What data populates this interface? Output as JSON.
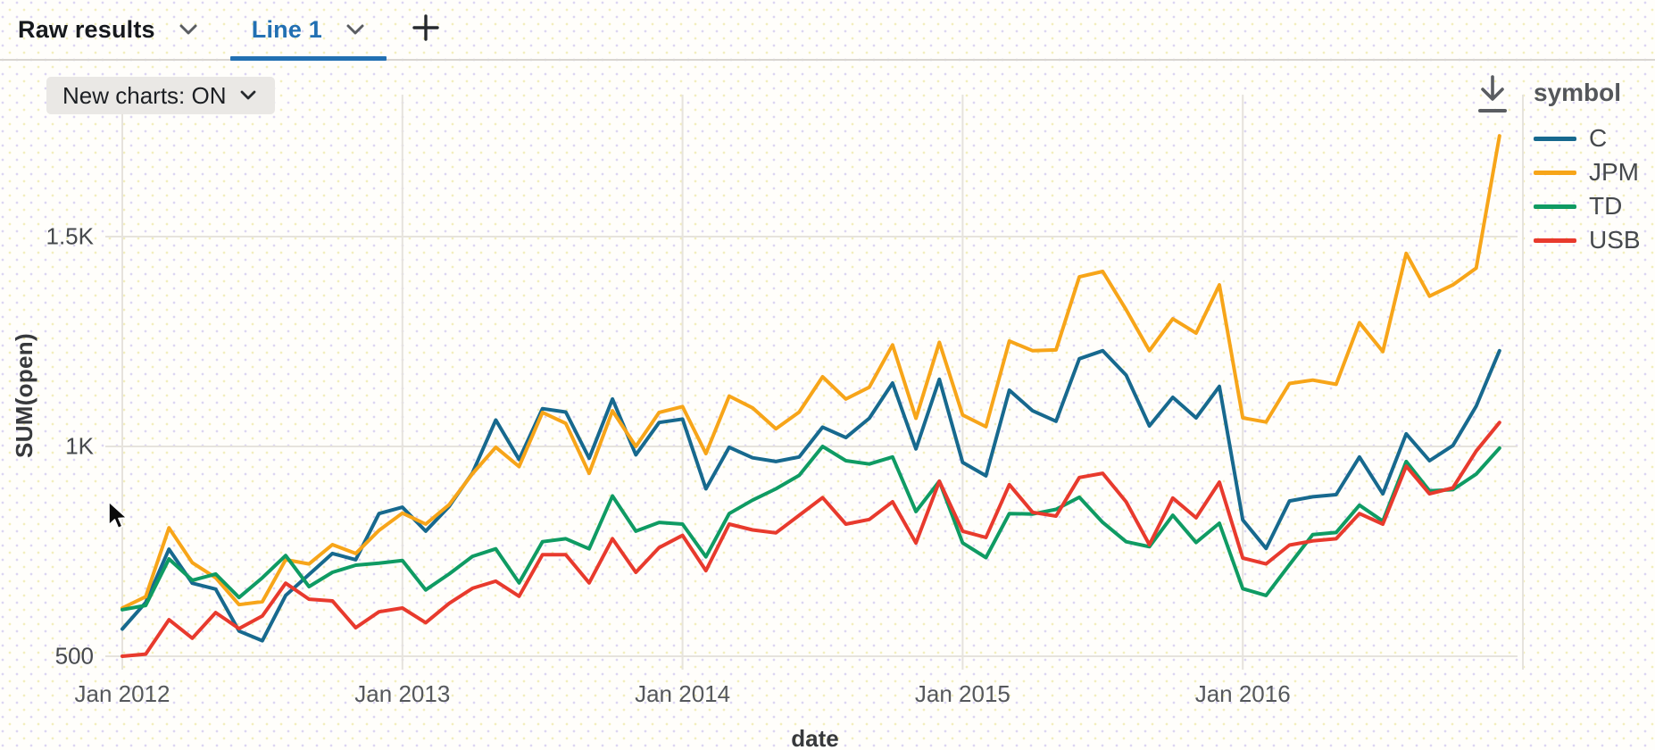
{
  "colors": {
    "accent": "#2270b2",
    "tab_inactive_text": "#16191d",
    "gridline": "#e6e3dd",
    "icon_gray": "#5a5d61"
  },
  "tabbar": {
    "tabs": [
      {
        "label": "Raw results",
        "active": false
      },
      {
        "label": "Line 1",
        "active": true
      }
    ],
    "add_tab_icon": "plus-icon"
  },
  "toolbar": {
    "new_charts_label": "New charts: ON",
    "download_icon": "download-icon"
  },
  "legend": {
    "title": "symbol",
    "items": [
      {
        "label": "C",
        "color": "#17698e"
      },
      {
        "label": "JPM",
        "color": "#f7a519"
      },
      {
        "label": "TD",
        "color": "#0f9b63"
      },
      {
        "label": "USB",
        "color": "#e83a2d"
      }
    ]
  },
  "chart_data": {
    "type": "line",
    "title": "",
    "xlabel": "date",
    "ylabel": "SUM(open)",
    "x_start": "Jan 2012",
    "x_interval": "month",
    "x_tick_labels": [
      "Jan 2012",
      "Jan 2013",
      "Jan 2014",
      "Jan 2015",
      "Jan 2016"
    ],
    "x_ticks": [
      {
        "label": "Jan 2012",
        "month": 0
      },
      {
        "label": "Jan 2013",
        "month": 12
      },
      {
        "label": "Jan 2014",
        "month": 24
      },
      {
        "label": "Jan 2015",
        "month": 36
      },
      {
        "label": "Jan 2016",
        "month": 48
      }
    ],
    "x_grid_extra_month": 60,
    "y_ticks": [
      {
        "label": "500",
        "value": 500
      },
      {
        "label": "1K",
        "value": 1000
      },
      {
        "label": "1.5K",
        "value": 1500
      }
    ],
    "ylim": [
      440,
      1830
    ],
    "grid": true,
    "legend_position": "right",
    "series": [
      {
        "name": "C",
        "color": "#17698e",
        "values": [
          565,
          628,
          755,
          674,
          660,
          560,
          537,
          645,
          695,
          745,
          730,
          840,
          855,
          798,
          857,
          937,
          1063,
          969,
          1090,
          1082,
          972,
          1113,
          980,
          1057,
          1065,
          899,
          998,
          973,
          964,
          975,
          1046,
          1021,
          1067,
          1151,
          994,
          1160,
          962,
          930,
          1134,
          1085,
          1060,
          1209,
          1228,
          1170,
          1049,
          1117,
          1068,
          1143,
          825,
          757,
          870,
          880,
          885,
          975,
          887,
          1030,
          966,
          1002,
          1096,
          1228
        ]
      },
      {
        "name": "JPM",
        "color": "#f7a519",
        "values": [
          615,
          642,
          806,
          723,
          687,
          623,
          630,
          730,
          720,
          766,
          745,
          800,
          841,
          815,
          861,
          935,
          998,
          952,
          1081,
          1055,
          936,
          1085,
          1000,
          1081,
          1095,
          983,
          1120,
          1092,
          1042,
          1082,
          1166,
          1113,
          1141,
          1242,
          1067,
          1248,
          1075,
          1047,
          1251,
          1228,
          1230,
          1404,
          1417,
          1326,
          1228,
          1304,
          1270,
          1385,
          1068,
          1058,
          1150,
          1158,
          1148,
          1295,
          1226,
          1460,
          1358,
          1385,
          1425,
          1740
        ]
      },
      {
        "name": "TD",
        "color": "#0f9b63",
        "values": [
          611,
          621,
          732,
          681,
          696,
          640,
          687,
          740,
          666,
          700,
          717,
          722,
          728,
          658,
          696,
          738,
          756,
          675,
          773,
          780,
          756,
          882,
          798,
          819,
          815,
          737,
          840,
          872,
          899,
          931,
          1000,
          966,
          958,
          975,
          845,
          917,
          770,
          735,
          840,
          839,
          850,
          879,
          819,
          773,
          761,
          836,
          771,
          817,
          661,
          645,
          718,
          790,
          795,
          860,
          822,
          964,
          894,
          897,
          934,
          996
        ]
      },
      {
        "name": "USB",
        "color": "#e83a2d",
        "values": [
          500,
          505,
          587,
          543,
          604,
          566,
          596,
          674,
          636,
          632,
          568,
          606,
          615,
          580,
          626,
          662,
          679,
          643,
          742,
          742,
          675,
          780,
          700,
          759,
          788,
          704,
          815,
          801,
          794,
          836,
          878,
          815,
          826,
          868,
          770,
          917,
          798,
          783,
          909,
          843,
          834,
          926,
          936,
          868,
          766,
          877,
          830,
          915,
          734,
          720,
          765,
          775,
          780,
          840,
          815,
          953,
          887,
          901,
          989,
          1057
        ]
      }
    ]
  }
}
